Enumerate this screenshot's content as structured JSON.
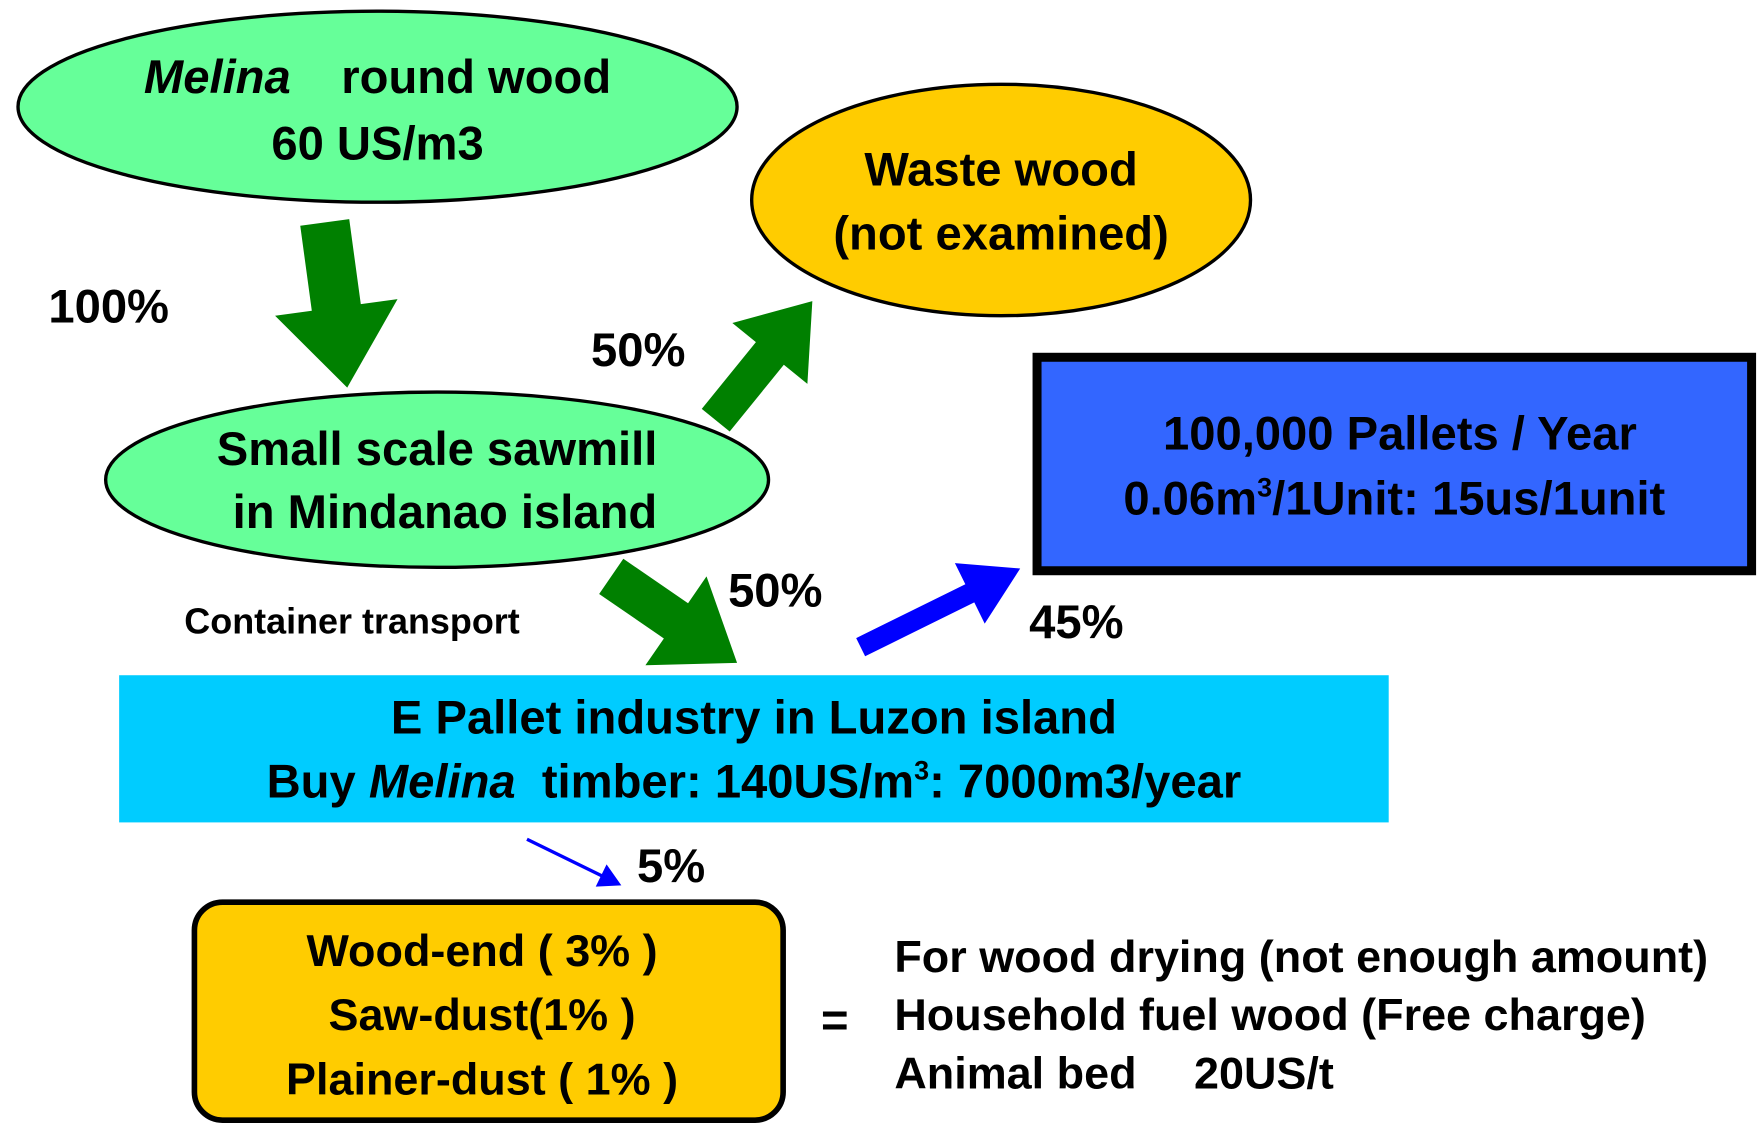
{
  "nodes": {
    "round_wood": {
      "title_italic": "Melina",
      "title_rest": "round wood",
      "price": "60 US/m3"
    },
    "waste_wood": {
      "lines": [
        "Waste wood",
        "(not examined)"
      ]
    },
    "sawmill": {
      "lines": [
        "Small scale sawmill",
        "in Mindanao island"
      ]
    },
    "pallets": {
      "line1": "100,000 Pallets / Year",
      "line2_a": "0.06m",
      "line2_sup": "3",
      "line2_b": "/1Unit: 15us/1unit"
    },
    "industry": {
      "line1": "E Pallet industry in Luzon island",
      "line2_a": "Buy ",
      "line2_italic": "Melina",
      "line2_b": "  timber: 140US/m",
      "line2_sup": "3",
      "line2_c": ": 7000m3/year"
    },
    "byproducts": {
      "lines": [
        "Wood-end ( 3% )",
        "Saw-dust(1% )",
        "Plainer-dust ( 1% )"
      ]
    },
    "uses": {
      "lines": [
        "For wood drying (not enough amount)",
        "Household fuel wood (Free charge)",
        "Animal bed　 20US/t"
      ]
    }
  },
  "equals": "=",
  "flows": {
    "to_sawmill": "100%",
    "to_waste": "50%",
    "to_industry": "50%",
    "transport": "Container transport",
    "to_pallets": "45%",
    "to_byproducts": "5%"
  }
}
